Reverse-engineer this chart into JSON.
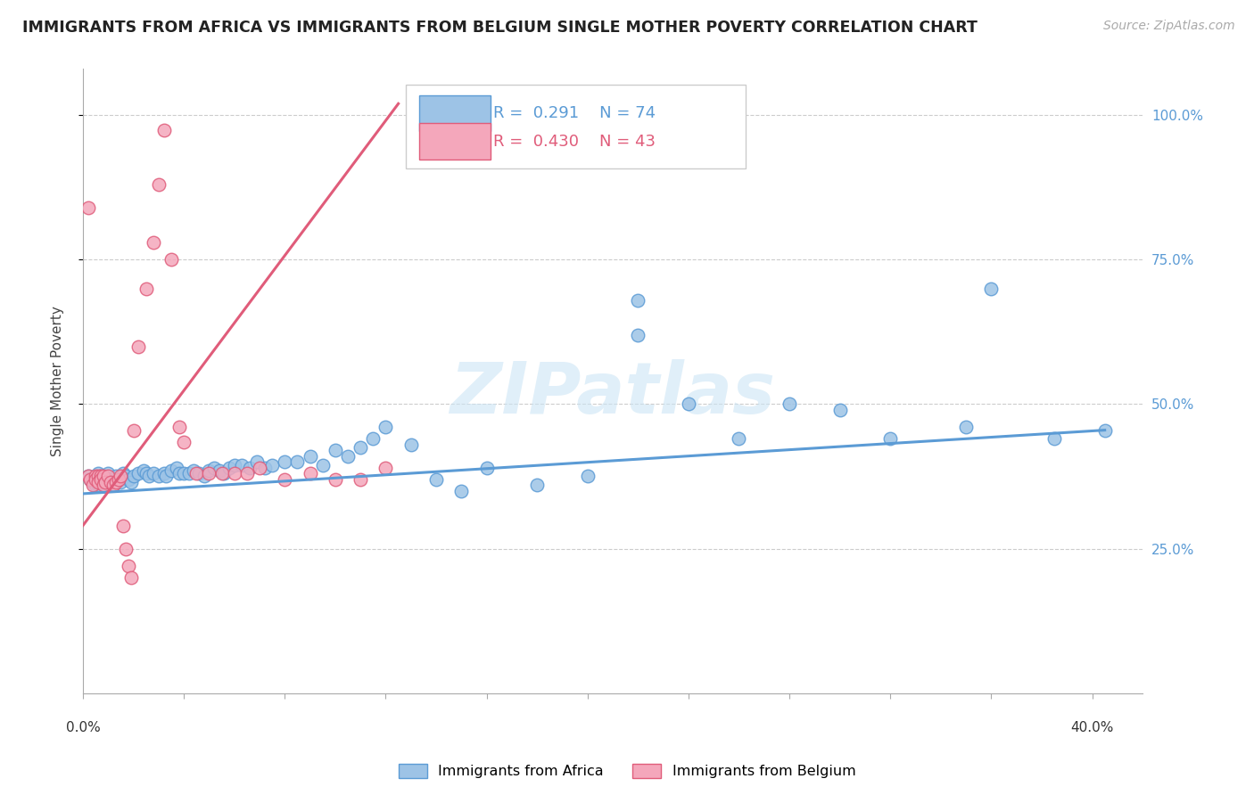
{
  "title": "IMMIGRANTS FROM AFRICA VS IMMIGRANTS FROM BELGIUM SINGLE MOTHER POVERTY CORRELATION CHART",
  "source": "Source: ZipAtlas.com",
  "ylabel": "Single Mother Poverty",
  "right_ytick_vals": [
    1.0,
    0.75,
    0.5,
    0.25
  ],
  "right_ytick_labels": [
    "100.0%",
    "75.0%",
    "50.0%",
    "25.0%"
  ],
  "xlim": [
    0.0,
    0.42
  ],
  "ylim": [
    0.0,
    1.08
  ],
  "africa_color": "#5b9bd5",
  "africa_color_fill": "#9dc3e6",
  "belgium_color": "#e05c7a",
  "belgium_color_fill": "#f4a7bb",
  "africa_R": "0.291",
  "africa_N": "74",
  "belgium_R": "0.430",
  "belgium_N": "43",
  "watermark": "ZIPatlas",
  "africa_line_x0": 0.0,
  "africa_line_y0": 0.345,
  "africa_line_x1": 0.405,
  "africa_line_y1": 0.455,
  "belgium_line_x0": 0.0,
  "belgium_line_y0": 0.29,
  "belgium_line_x1": 0.125,
  "belgium_line_y1": 1.02,
  "africa_x": [
    0.002,
    0.003,
    0.004,
    0.005,
    0.006,
    0.006,
    0.007,
    0.007,
    0.008,
    0.009,
    0.01,
    0.011,
    0.012,
    0.013,
    0.014,
    0.015,
    0.016,
    0.017,
    0.018,
    0.019,
    0.02,
    0.022,
    0.024,
    0.025,
    0.026,
    0.028,
    0.03,
    0.032,
    0.033,
    0.035,
    0.037,
    0.038,
    0.04,
    0.042,
    0.044,
    0.046,
    0.048,
    0.05,
    0.052,
    0.054,
    0.056,
    0.058,
    0.06,
    0.063,
    0.066,
    0.069,
    0.072,
    0.075,
    0.08,
    0.085,
    0.09,
    0.095,
    0.1,
    0.105,
    0.11,
    0.115,
    0.12,
    0.13,
    0.14,
    0.15,
    0.16,
    0.18,
    0.2,
    0.22,
    0.24,
    0.26,
    0.28,
    0.3,
    0.32,
    0.35,
    0.36,
    0.385,
    0.405,
    0.22
  ],
  "africa_y": [
    0.375,
    0.37,
    0.365,
    0.36,
    0.38,
    0.36,
    0.375,
    0.37,
    0.365,
    0.36,
    0.38,
    0.37,
    0.36,
    0.375,
    0.37,
    0.365,
    0.38,
    0.375,
    0.37,
    0.365,
    0.375,
    0.38,
    0.385,
    0.38,
    0.375,
    0.38,
    0.375,
    0.38,
    0.375,
    0.385,
    0.39,
    0.38,
    0.38,
    0.38,
    0.385,
    0.38,
    0.375,
    0.385,
    0.39,
    0.385,
    0.38,
    0.39,
    0.395,
    0.395,
    0.39,
    0.4,
    0.39,
    0.395,
    0.4,
    0.4,
    0.41,
    0.395,
    0.42,
    0.41,
    0.425,
    0.44,
    0.46,
    0.43,
    0.37,
    0.35,
    0.39,
    0.36,
    0.375,
    0.62,
    0.5,
    0.44,
    0.5,
    0.49,
    0.44,
    0.46,
    0.7,
    0.44,
    0.455,
    0.68
  ],
  "belgium_x": [
    0.002,
    0.003,
    0.004,
    0.005,
    0.005,
    0.006,
    0.006,
    0.007,
    0.007,
    0.008,
    0.008,
    0.009,
    0.01,
    0.011,
    0.012,
    0.013,
    0.014,
    0.015,
    0.016,
    0.017,
    0.018,
    0.019,
    0.02,
    0.022,
    0.025,
    0.028,
    0.03,
    0.032,
    0.035,
    0.038,
    0.04,
    0.045,
    0.05,
    0.055,
    0.06,
    0.065,
    0.07,
    0.08,
    0.09,
    0.1,
    0.11,
    0.12,
    0.002
  ],
  "belgium_y": [
    0.375,
    0.37,
    0.36,
    0.375,
    0.37,
    0.375,
    0.365,
    0.375,
    0.37,
    0.375,
    0.36,
    0.365,
    0.375,
    0.365,
    0.36,
    0.365,
    0.37,
    0.375,
    0.29,
    0.25,
    0.22,
    0.2,
    0.455,
    0.6,
    0.7,
    0.78,
    0.88,
    0.975,
    0.75,
    0.46,
    0.435,
    0.38,
    0.38,
    0.38,
    0.38,
    0.38,
    0.39,
    0.37,
    0.38,
    0.37,
    0.37,
    0.39,
    0.84
  ]
}
